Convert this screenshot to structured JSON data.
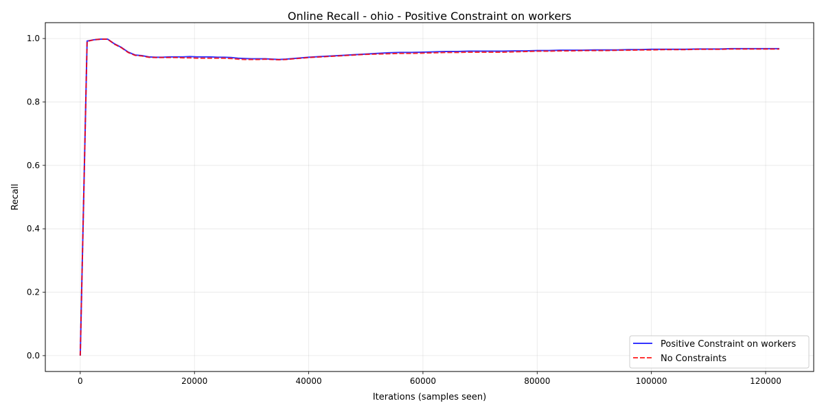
{
  "chart_data": {
    "type": "line",
    "title": "Online Recall - ohio - Positive Constraint on workers",
    "xlabel": "Iterations (samples seen)",
    "ylabel": "Recall",
    "xlim": [
      -6116,
      128416
    ],
    "ylim": [
      -0.05,
      1.05
    ],
    "xticks": [
      0,
      20000,
      40000,
      60000,
      80000,
      100000,
      120000
    ],
    "xtick_labels": [
      "0",
      "20000",
      "40000",
      "60000",
      "80000",
      "100000",
      "120000"
    ],
    "yticks": [
      0.0,
      0.2,
      0.4,
      0.6,
      0.8,
      1.0
    ],
    "ytick_labels": [
      "0.0",
      "0.2",
      "0.4",
      "0.6",
      "0.8",
      "1.0"
    ],
    "grid": true,
    "legend_position": "lower-right",
    "series": [
      {
        "name": "Positive Constraint on workers",
        "color": "#0000ff",
        "style": "solid",
        "x": [
          0,
          1200,
          2400,
          3600,
          4800,
          6000,
          7200,
          8400,
          9600,
          10800,
          12000,
          13200,
          14400,
          15600,
          16800,
          18000,
          19200,
          20400,
          21600,
          22800,
          24000,
          25200,
          26400,
          27600,
          28800,
          30000,
          31200,
          32400,
          33600,
          34800,
          36000,
          38000,
          40000,
          42000,
          44000,
          46000,
          48000,
          50000,
          52000,
          54000,
          56000,
          58000,
          60000,
          62000,
          64000,
          66000,
          68000,
          70000,
          72000,
          74000,
          76000,
          78000,
          80000,
          82000,
          84000,
          86000,
          88000,
          90000,
          92000,
          94000,
          96000,
          98000,
          100000,
          102000,
          104000,
          106000,
          108000,
          110000,
          112000,
          114000,
          116000,
          118000,
          120000,
          122400
        ],
        "y": [
          0.0,
          0.992,
          0.996,
          0.998,
          0.998,
          0.983,
          0.972,
          0.957,
          0.948,
          0.946,
          0.942,
          0.941,
          0.941,
          0.942,
          0.942,
          0.942,
          0.943,
          0.942,
          0.942,
          0.942,
          0.941,
          0.941,
          0.94,
          0.938,
          0.937,
          0.936,
          0.936,
          0.936,
          0.935,
          0.934,
          0.935,
          0.938,
          0.941,
          0.943,
          0.945,
          0.947,
          0.949,
          0.951,
          0.953,
          0.955,
          0.956,
          0.956,
          0.957,
          0.958,
          0.959,
          0.959,
          0.96,
          0.96,
          0.96,
          0.96,
          0.961,
          0.961,
          0.962,
          0.962,
          0.963,
          0.963,
          0.963,
          0.964,
          0.964,
          0.964,
          0.965,
          0.965,
          0.966,
          0.966,
          0.966,
          0.966,
          0.967,
          0.967,
          0.967,
          0.968,
          0.968,
          0.968,
          0.968,
          0.968
        ]
      },
      {
        "name": "No Constraints",
        "color": "#ff0000",
        "style": "dashed",
        "x": [
          0,
          1200,
          2400,
          3600,
          4800,
          6000,
          7200,
          8400,
          9600,
          10800,
          12000,
          13200,
          14400,
          15600,
          16800,
          18000,
          19200,
          20400,
          21600,
          22800,
          24000,
          25200,
          26400,
          27600,
          28800,
          30000,
          31200,
          32400,
          33600,
          34800,
          36000,
          38000,
          40000,
          42000,
          44000,
          46000,
          48000,
          50000,
          52000,
          54000,
          56000,
          58000,
          60000,
          62000,
          64000,
          66000,
          68000,
          70000,
          72000,
          74000,
          76000,
          78000,
          80000,
          82000,
          84000,
          86000,
          88000,
          90000,
          92000,
          94000,
          96000,
          98000,
          100000,
          102000,
          104000,
          106000,
          108000,
          110000,
          112000,
          114000,
          116000,
          118000,
          120000,
          122400
        ],
        "y": [
          0.0,
          0.991,
          0.996,
          0.998,
          0.998,
          0.982,
          0.971,
          0.956,
          0.947,
          0.945,
          0.941,
          0.94,
          0.94,
          0.94,
          0.94,
          0.939,
          0.939,
          0.938,
          0.938,
          0.938,
          0.938,
          0.938,
          0.937,
          0.935,
          0.934,
          0.934,
          0.934,
          0.935,
          0.934,
          0.933,
          0.934,
          0.937,
          0.94,
          0.942,
          0.944,
          0.946,
          0.948,
          0.95,
          0.951,
          0.952,
          0.953,
          0.953,
          0.954,
          0.955,
          0.956,
          0.956,
          0.957,
          0.957,
          0.957,
          0.957,
          0.958,
          0.959,
          0.96,
          0.96,
          0.961,
          0.961,
          0.962,
          0.962,
          0.962,
          0.963,
          0.963,
          0.964,
          0.964,
          0.965,
          0.965,
          0.965,
          0.966,
          0.966,
          0.966,
          0.967,
          0.967,
          0.967,
          0.967,
          0.967
        ]
      }
    ]
  }
}
